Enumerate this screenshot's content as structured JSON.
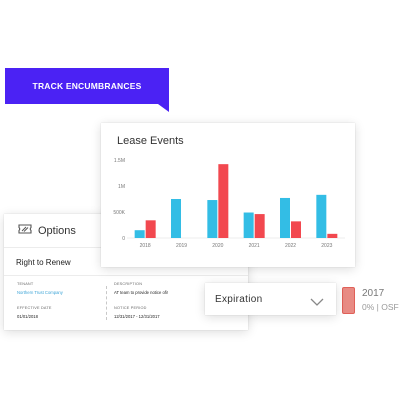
{
  "banner": {
    "label": "TRACK ENCUMBRANCES"
  },
  "options_card": {
    "title": "Options",
    "section": "Right to Renew",
    "fields": {
      "tenant": {
        "label": "TENANT",
        "value": "Northern Trust Company"
      },
      "description": {
        "label": "DESCRIPTION",
        "value": "AT team to provide notice ofi!"
      },
      "effective_date": {
        "label": "EFFECTIVE DATE",
        "value": "01/01/2018"
      },
      "notice_period": {
        "label": "NOTICE PERIOD",
        "value": "12/31/2017 - 12/31/2017"
      }
    }
  },
  "events_card": {
    "title": "Lease Events"
  },
  "chart_data": {
    "type": "bar",
    "categories": [
      "2018",
      "2019",
      "2020",
      "2021",
      "2022",
      "2023"
    ],
    "y_tick_labels": [
      "0",
      "500K",
      "1M",
      "1.5M"
    ],
    "ylim": [
      0,
      1500000
    ],
    "series": [
      {
        "color": "#33bde5",
        "values": [
          150000,
          750000,
          730000,
          490000,
          770000,
          830000
        ]
      },
      {
        "color": "#f2484f",
        "values": [
          340000,
          0,
          1420000,
          460000,
          320000,
          80000
        ]
      }
    ]
  },
  "expiration": {
    "label": "Expiration"
  },
  "legend": {
    "year": "2017",
    "value": "0% | OSF",
    "color": "#e88b84"
  },
  "colors": {
    "accent": "#4b22f4",
    "blue_bar": "#33bde5",
    "red_bar": "#f2484f"
  }
}
